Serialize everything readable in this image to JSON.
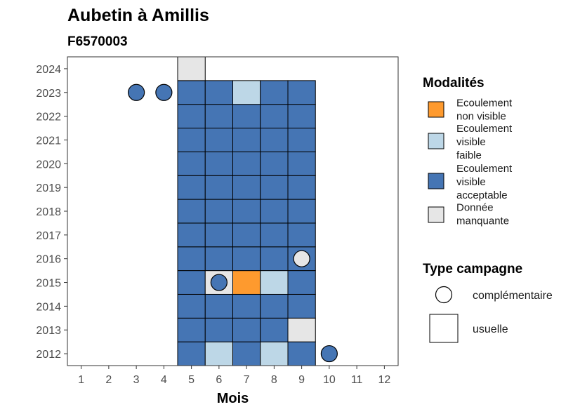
{
  "chart_data": {
    "type": "heatmap",
    "title": "Aubetin à Amillis",
    "subtitle": "F6570003",
    "xlabel": "Mois",
    "ylabel": "",
    "x_ticks": [
      "1",
      "2",
      "3",
      "4",
      "5",
      "6",
      "7",
      "8",
      "9",
      "10",
      "11",
      "12"
    ],
    "y_ticks": [
      "2012",
      "2013",
      "2014",
      "2015",
      "2016",
      "2017",
      "2018",
      "2019",
      "2020",
      "2021",
      "2022",
      "2023",
      "2024"
    ],
    "xlim": [
      0.5,
      12.5
    ],
    "ylim": [
      2011.5,
      2024.5
    ],
    "grid": false,
    "legend_position": "right",
    "legend_modalites": {
      "title": "Modalités",
      "entries": [
        {
          "key": "nv",
          "label": [
            "Ecoulement",
            "non visible"
          ],
          "color": "#FE9A2E"
        },
        {
          "key": "vf",
          "label": [
            "Ecoulement",
            "visible",
            "faible"
          ],
          "color": "#BDD7E7"
        },
        {
          "key": "va",
          "label": [
            "Ecoulement",
            "visible",
            "acceptable"
          ],
          "color": "#4575B4"
        },
        {
          "key": "dm",
          "label": [
            "Donnée",
            "manquante"
          ],
          "color": "#E6E6E6"
        }
      ]
    },
    "legend_campagne": {
      "title": "Type campagne",
      "entries": [
        {
          "key": "comp",
          "label": "complémentaire",
          "shape": "circle"
        },
        {
          "key": "usu",
          "label": "usuelle",
          "shape": "square"
        }
      ]
    },
    "usuelle": [
      {
        "year": 2012,
        "month": 5,
        "value": "va"
      },
      {
        "year": 2012,
        "month": 6,
        "value": "vf"
      },
      {
        "year": 2012,
        "month": 7,
        "value": "va"
      },
      {
        "year": 2012,
        "month": 8,
        "value": "vf"
      },
      {
        "year": 2012,
        "month": 9,
        "value": "va"
      },
      {
        "year": 2013,
        "month": 5,
        "value": "va"
      },
      {
        "year": 2013,
        "month": 6,
        "value": "va"
      },
      {
        "year": 2013,
        "month": 7,
        "value": "va"
      },
      {
        "year": 2013,
        "month": 8,
        "value": "va"
      },
      {
        "year": 2013,
        "month": 9,
        "value": "dm"
      },
      {
        "year": 2014,
        "month": 5,
        "value": "va"
      },
      {
        "year": 2014,
        "month": 6,
        "value": "va"
      },
      {
        "year": 2014,
        "month": 7,
        "value": "va"
      },
      {
        "year": 2014,
        "month": 8,
        "value": "va"
      },
      {
        "year": 2014,
        "month": 9,
        "value": "va"
      },
      {
        "year": 2015,
        "month": 5,
        "value": "va"
      },
      {
        "year": 2015,
        "month": 6,
        "value": "dm"
      },
      {
        "year": 2015,
        "month": 7,
        "value": "nv"
      },
      {
        "year": 2015,
        "month": 8,
        "value": "vf"
      },
      {
        "year": 2015,
        "month": 9,
        "value": "va"
      },
      {
        "year": 2016,
        "month": 5,
        "value": "va"
      },
      {
        "year": 2016,
        "month": 6,
        "value": "va"
      },
      {
        "year": 2016,
        "month": 7,
        "value": "va"
      },
      {
        "year": 2016,
        "month": 8,
        "value": "va"
      },
      {
        "year": 2016,
        "month": 9,
        "value": "va"
      },
      {
        "year": 2017,
        "month": 5,
        "value": "va"
      },
      {
        "year": 2017,
        "month": 6,
        "value": "va"
      },
      {
        "year": 2017,
        "month": 7,
        "value": "va"
      },
      {
        "year": 2017,
        "month": 8,
        "value": "va"
      },
      {
        "year": 2017,
        "month": 9,
        "value": "va"
      },
      {
        "year": 2018,
        "month": 5,
        "value": "va"
      },
      {
        "year": 2018,
        "month": 6,
        "value": "va"
      },
      {
        "year": 2018,
        "month": 7,
        "value": "va"
      },
      {
        "year": 2018,
        "month": 8,
        "value": "va"
      },
      {
        "year": 2018,
        "month": 9,
        "value": "va"
      },
      {
        "year": 2019,
        "month": 5,
        "value": "va"
      },
      {
        "year": 2019,
        "month": 6,
        "value": "va"
      },
      {
        "year": 2019,
        "month": 7,
        "value": "va"
      },
      {
        "year": 2019,
        "month": 8,
        "value": "va"
      },
      {
        "year": 2019,
        "month": 9,
        "value": "va"
      },
      {
        "year": 2020,
        "month": 5,
        "value": "va"
      },
      {
        "year": 2020,
        "month": 6,
        "value": "va"
      },
      {
        "year": 2020,
        "month": 7,
        "value": "va"
      },
      {
        "year": 2020,
        "month": 8,
        "value": "va"
      },
      {
        "year": 2020,
        "month": 9,
        "value": "va"
      },
      {
        "year": 2021,
        "month": 5,
        "value": "va"
      },
      {
        "year": 2021,
        "month": 6,
        "value": "va"
      },
      {
        "year": 2021,
        "month": 7,
        "value": "va"
      },
      {
        "year": 2021,
        "month": 8,
        "value": "va"
      },
      {
        "year": 2021,
        "month": 9,
        "value": "va"
      },
      {
        "year": 2022,
        "month": 5,
        "value": "va"
      },
      {
        "year": 2022,
        "month": 6,
        "value": "va"
      },
      {
        "year": 2022,
        "month": 7,
        "value": "va"
      },
      {
        "year": 2022,
        "month": 8,
        "value": "va"
      },
      {
        "year": 2022,
        "month": 9,
        "value": "va"
      },
      {
        "year": 2023,
        "month": 5,
        "value": "va"
      },
      {
        "year": 2023,
        "month": 6,
        "value": "va"
      },
      {
        "year": 2023,
        "month": 7,
        "value": "vf"
      },
      {
        "year": 2023,
        "month": 8,
        "value": "va"
      },
      {
        "year": 2023,
        "month": 9,
        "value": "va"
      },
      {
        "year": 2024,
        "month": 5,
        "value": "dm"
      }
    ],
    "complementaire": [
      {
        "year": 2023,
        "month": 3,
        "value": "va"
      },
      {
        "year": 2023,
        "month": 4,
        "value": "va"
      },
      {
        "year": 2016,
        "month": 9,
        "value": "dm"
      },
      {
        "year": 2015,
        "month": 6,
        "value": "va"
      },
      {
        "year": 2012,
        "month": 10,
        "value": "va"
      }
    ]
  }
}
